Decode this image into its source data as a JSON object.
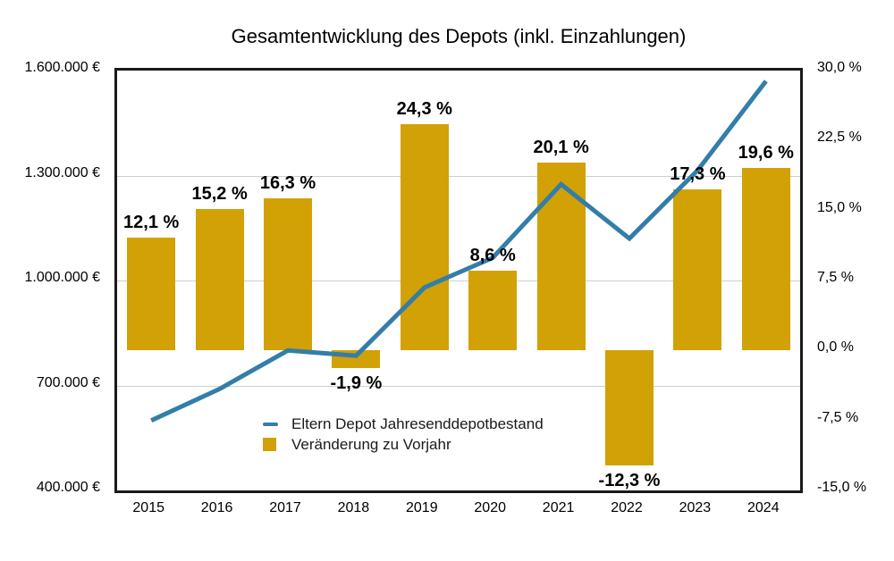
{
  "title": "Gesamtentwicklung des Depots (inkl. Einzahlungen)",
  "chart_data": {
    "type": "combo_bar_line",
    "title": "Gesamtentwicklung des Depots (inkl. Einzahlungen)",
    "categories": [
      "2015",
      "2016",
      "2017",
      "2018",
      "2019",
      "2020",
      "2021",
      "2022",
      "2023",
      "2024"
    ],
    "series": [
      {
        "name": "Eltern Depot Jahresenddepotbestand",
        "type": "line",
        "axis": "left",
        "color": "#337EA9",
        "values": [
          600000,
          690000,
          800000,
          785000,
          980000,
          1065000,
          1275000,
          1120000,
          1315000,
          1570000
        ]
      },
      {
        "name": "Veränderung zu Vorjahr",
        "type": "bar",
        "axis": "right",
        "color": "#D1A106",
        "values": [
          12.1,
          15.2,
          16.3,
          -1.9,
          24.3,
          8.6,
          20.1,
          -12.3,
          17.3,
          19.6
        ],
        "data_labels": [
          "12,1 %",
          "15,2 %",
          "16,3 %",
          "-1,9 %",
          "24,3 %",
          "8,6 %",
          "20,1 %",
          "-12,3 %",
          "17,3 %",
          "19,6 %"
        ]
      }
    ],
    "left_axis": {
      "range": [
        400000,
        1600000
      ],
      "tick_labels": [
        "1.600.000 €",
        "1.300.000 €",
        "1.000.000 €",
        "700.000 €",
        "400.000 €"
      ]
    },
    "right_axis": {
      "range": [
        -15,
        30
      ],
      "tick_labels": [
        "30,0 %",
        "22,5 %",
        "15,0 %",
        "7,5 %",
        "0,0 %",
        "-7,5 %",
        "-15,0 %"
      ]
    },
    "grid": "horizontal-at-left-axis-ticks",
    "legend_position": "inside-bottom-left"
  }
}
